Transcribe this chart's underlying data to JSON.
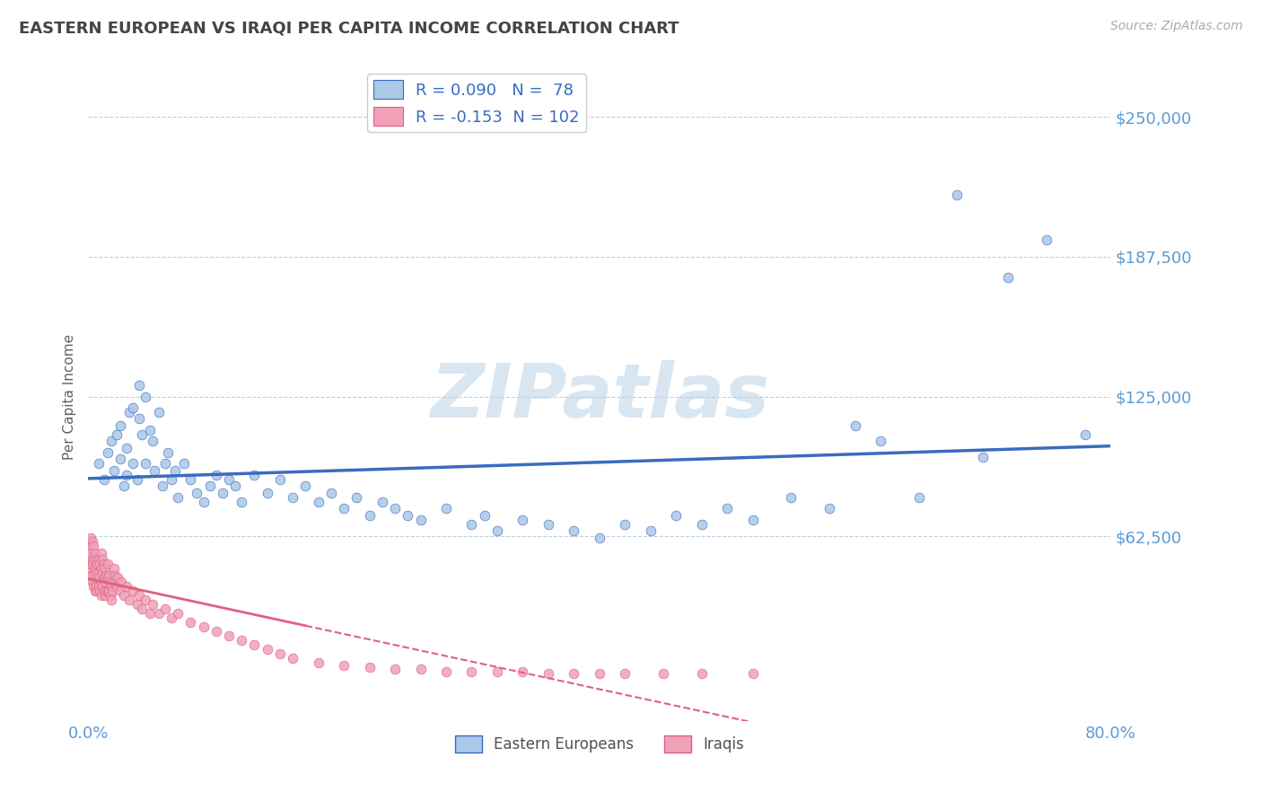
{
  "title": "EASTERN EUROPEAN VS IRAQI PER CAPITA INCOME CORRELATION CHART",
  "source": "Source: ZipAtlas.com",
  "ylabel": "Per Capita Income",
  "xlim": [
    0.0,
    0.8
  ],
  "ylim": [
    -20000,
    270000
  ],
  "yticks": [
    62500,
    125000,
    187500,
    250000
  ],
  "ytick_labels": [
    "$62,500",
    "$125,000",
    "$187,500",
    "$250,000"
  ],
  "dot_color_eastern": "#aac8e8",
  "dot_color_iraqi": "#f0a0b8",
  "line_color_eastern": "#3a6bbf",
  "line_color_iraqi": "#e06080",
  "watermark_color": "#d8e6f2",
  "background_color": "#ffffff",
  "title_color": "#444444",
  "tick_label_color": "#5b9bd5",
  "grid_color": "#c0d0e0",
  "legend_R1": "R = 0.090",
  "legend_N1": "N =  78",
  "legend_R2": "R = -0.153",
  "legend_N2": "N = 102",
  "legend_label1": "Eastern Europeans",
  "legend_label2": "Iraqis",
  "eastern_x": [
    0.008,
    0.012,
    0.015,
    0.018,
    0.02,
    0.022,
    0.025,
    0.025,
    0.028,
    0.03,
    0.03,
    0.032,
    0.035,
    0.035,
    0.038,
    0.04,
    0.04,
    0.042,
    0.045,
    0.045,
    0.048,
    0.05,
    0.052,
    0.055,
    0.058,
    0.06,
    0.062,
    0.065,
    0.068,
    0.07,
    0.075,
    0.08,
    0.085,
    0.09,
    0.095,
    0.1,
    0.105,
    0.11,
    0.115,
    0.12,
    0.13,
    0.14,
    0.15,
    0.16,
    0.17,
    0.18,
    0.19,
    0.2,
    0.21,
    0.22,
    0.23,
    0.24,
    0.25,
    0.26,
    0.28,
    0.3,
    0.31,
    0.32,
    0.34,
    0.36,
    0.38,
    0.4,
    0.42,
    0.44,
    0.46,
    0.48,
    0.5,
    0.52,
    0.55,
    0.58,
    0.6,
    0.62,
    0.65,
    0.68,
    0.7,
    0.72,
    0.75,
    0.78
  ],
  "eastern_y": [
    95000,
    88000,
    100000,
    105000,
    92000,
    108000,
    97000,
    112000,
    85000,
    90000,
    102000,
    118000,
    120000,
    95000,
    88000,
    130000,
    115000,
    108000,
    125000,
    95000,
    110000,
    105000,
    92000,
    118000,
    85000,
    95000,
    100000,
    88000,
    92000,
    80000,
    95000,
    88000,
    82000,
    78000,
    85000,
    90000,
    82000,
    88000,
    85000,
    78000,
    90000,
    82000,
    88000,
    80000,
    85000,
    78000,
    82000,
    75000,
    80000,
    72000,
    78000,
    75000,
    72000,
    70000,
    75000,
    68000,
    72000,
    65000,
    70000,
    68000,
    65000,
    62000,
    68000,
    65000,
    72000,
    68000,
    75000,
    70000,
    80000,
    75000,
    112000,
    105000,
    80000,
    215000,
    98000,
    178000,
    195000,
    108000
  ],
  "iraqi_x": [
    0.0,
    0.0,
    0.0,
    0.001,
    0.001,
    0.002,
    0.002,
    0.002,
    0.003,
    0.003,
    0.003,
    0.004,
    0.004,
    0.004,
    0.004,
    0.005,
    0.005,
    0.005,
    0.005,
    0.006,
    0.006,
    0.006,
    0.007,
    0.007,
    0.007,
    0.008,
    0.008,
    0.008,
    0.009,
    0.009,
    0.009,
    0.01,
    0.01,
    0.01,
    0.01,
    0.011,
    0.011,
    0.011,
    0.012,
    0.012,
    0.012,
    0.013,
    0.013,
    0.013,
    0.014,
    0.014,
    0.015,
    0.015,
    0.015,
    0.016,
    0.016,
    0.017,
    0.017,
    0.018,
    0.018,
    0.019,
    0.02,
    0.02,
    0.021,
    0.022,
    0.023,
    0.025,
    0.026,
    0.028,
    0.03,
    0.032,
    0.035,
    0.038,
    0.04,
    0.042,
    0.045,
    0.048,
    0.05,
    0.055,
    0.06,
    0.065,
    0.07,
    0.08,
    0.09,
    0.1,
    0.11,
    0.12,
    0.13,
    0.14,
    0.15,
    0.16,
    0.18,
    0.2,
    0.22,
    0.24,
    0.26,
    0.28,
    0.3,
    0.32,
    0.34,
    0.36,
    0.38,
    0.4,
    0.42,
    0.45,
    0.48,
    0.52
  ],
  "iraqi_y": [
    55000,
    52000,
    48000,
    58000,
    50000,
    62000,
    55000,
    45000,
    60000,
    50000,
    42000,
    58000,
    52000,
    45000,
    40000,
    55000,
    48000,
    42000,
    38000,
    52000,
    46000,
    40000,
    50000,
    44000,
    38000,
    52000,
    46000,
    40000,
    50000,
    44000,
    38000,
    55000,
    48000,
    42000,
    36000,
    52000,
    46000,
    40000,
    50000,
    44000,
    38000,
    48000,
    42000,
    36000,
    45000,
    38000,
    50000,
    44000,
    38000,
    45000,
    38000,
    42000,
    36000,
    40000,
    34000,
    38000,
    48000,
    42000,
    45000,
    40000,
    44000,
    38000,
    42000,
    36000,
    40000,
    34000,
    38000,
    32000,
    36000,
    30000,
    34000,
    28000,
    32000,
    28000,
    30000,
    26000,
    28000,
    24000,
    22000,
    20000,
    18000,
    16000,
    14000,
    12000,
    10000,
    8000,
    6000,
    5000,
    4000,
    3000,
    3000,
    2000,
    2000,
    2000,
    2000,
    1000,
    1000,
    1000,
    1000,
    1000,
    1000,
    1000
  ]
}
